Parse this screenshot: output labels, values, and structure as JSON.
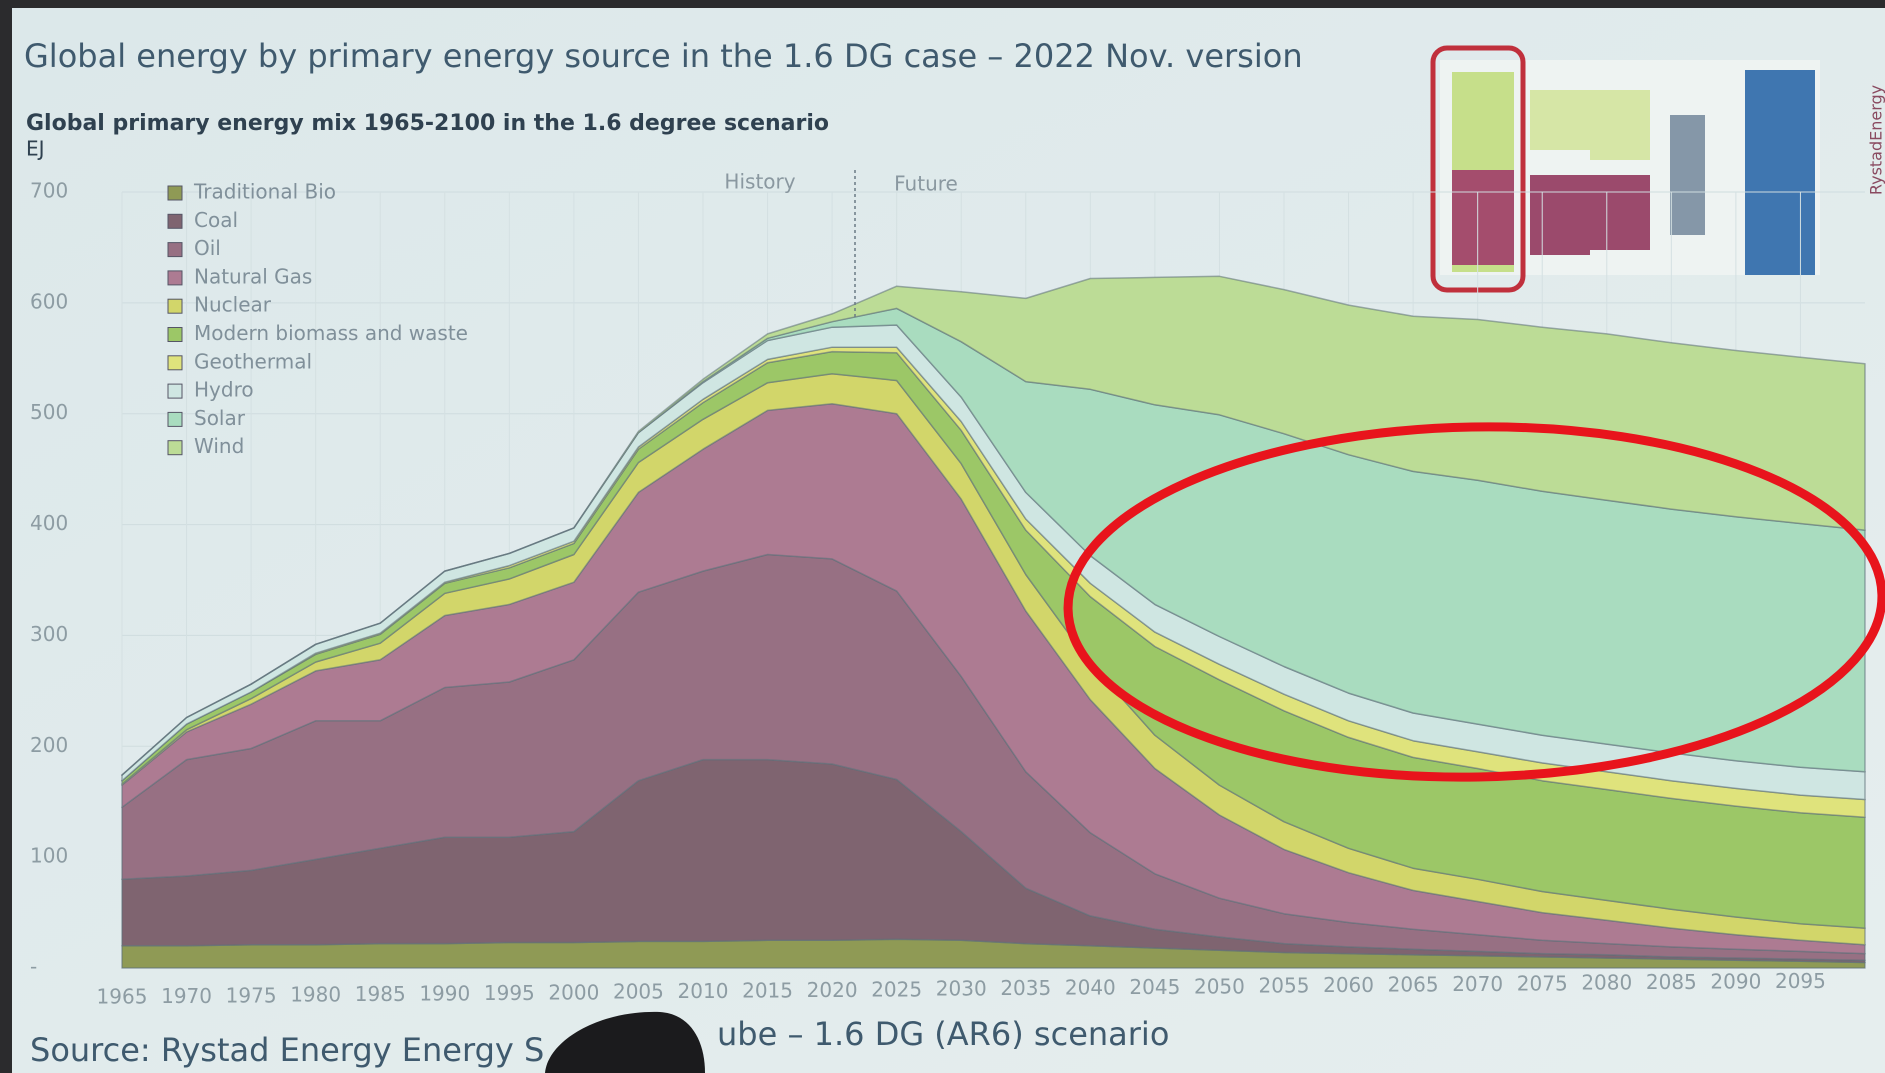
{
  "chart_data": {
    "type": "stacked-area",
    "title": "Global energy by primary energy source in the 1.6 DG case – 2022 Nov. version",
    "subtitle": "Global primary energy mix 1965-2100 in the 1.6 degree scenario",
    "y_label": "EJ",
    "annotations": [
      "History",
      "Future"
    ],
    "source": [
      "Source: Rystad Energy Energy S",
      "ube – 1.6 DG (AR6) scenario"
    ],
    "logo": "RystadEnergy",
    "x": [
      1965,
      1970,
      1975,
      1980,
      1985,
      1990,
      1995,
      2000,
      2005,
      2010,
      2015,
      2020,
      2025,
      2030,
      2035,
      2040,
      2045,
      2050,
      2055,
      2060,
      2065,
      2070,
      2075,
      2080,
      2085,
      2090,
      2095,
      2100
    ],
    "xlim": [
      1965,
      2100
    ],
    "xticks": [
      1965,
      1970,
      1975,
      1980,
      1985,
      1990,
      1995,
      2000,
      2005,
      2010,
      2015,
      2020,
      2025,
      2030,
      2035,
      2040,
      2045,
      2050,
      2055,
      2060,
      2065,
      2070,
      2075,
      2080,
      2085,
      2090,
      2095
    ],
    "ylim": [
      0,
      700
    ],
    "yticks": [
      {
        "value": 0,
        "label": "-"
      },
      100,
      200,
      300,
      400,
      500,
      600,
      700
    ],
    "grid": true,
    "legend": "top-left",
    "series": [
      {
        "name": "Traditional Bio",
        "color": "#8f9a55",
        "values": [
          20,
          20,
          21,
          21,
          22,
          22,
          23,
          23,
          24,
          24,
          25,
          25,
          26,
          25,
          22,
          20,
          18,
          16,
          14,
          13,
          12,
          11,
          10,
          9,
          8,
          7,
          6,
          5
        ]
      },
      {
        "name": "Coal",
        "color": "#7f6470",
        "values": [
          60,
          63,
          67,
          77,
          86,
          96,
          95,
          100,
          145,
          164,
          163,
          159,
          144,
          98,
          50,
          27,
          17,
          12,
          8,
          6,
          5,
          4,
          3,
          3,
          2,
          2,
          2,
          2
        ]
      },
      {
        "name": "Oil",
        "color": "#977083",
        "values": [
          65,
          105,
          110,
          125,
          115,
          135,
          140,
          155,
          170,
          170,
          185,
          185,
          170,
          140,
          105,
          75,
          50,
          35,
          27,
          22,
          18,
          15,
          12,
          10,
          9,
          8,
          7,
          6
        ]
      },
      {
        "name": "Natural Gas",
        "color": "#ad7b92",
        "values": [
          20,
          25,
          40,
          45,
          55,
          65,
          70,
          70,
          90,
          110,
          130,
          140,
          160,
          160,
          145,
          120,
          95,
          75,
          58,
          45,
          35,
          30,
          25,
          21,
          17,
          13,
          10,
          8
        ]
      },
      {
        "name": "Nuclear",
        "color": "#d2d66a",
        "values": [
          1,
          2,
          5,
          8,
          15,
          20,
          23,
          25,
          27,
          27,
          25,
          27,
          30,
          32,
          33,
          33,
          30,
          27,
          25,
          22,
          20,
          20,
          19,
          18,
          17,
          16,
          15,
          15
        ]
      },
      {
        "name": "Modern biomass and waste",
        "color": "#9cc767",
        "values": [
          3,
          5,
          6,
          7,
          8,
          9,
          10,
          10,
          12,
          15,
          18,
          20,
          25,
          30,
          40,
          60,
          80,
          95,
          100,
          100,
          100,
          100,
          100,
          100,
          100,
          100,
          100,
          100
        ]
      },
      {
        "name": "Geothermal",
        "color": "#dfe37c",
        "values": [
          0,
          0,
          0,
          1,
          1,
          1,
          2,
          2,
          2,
          3,
          3,
          4,
          5,
          8,
          10,
          12,
          13,
          14,
          15,
          15,
          15,
          15,
          16,
          16,
          16,
          16,
          16,
          16
        ]
      },
      {
        "name": "Hydro",
        "color": "#cfe6e2",
        "values": [
          5,
          6,
          7,
          8,
          9,
          10,
          11,
          12,
          13,
          15,
          17,
          18,
          20,
          22,
          24,
          25,
          25,
          25,
          25,
          25,
          25,
          25,
          25,
          25,
          25,
          25,
          25,
          25
        ]
      },
      {
        "name": "Solar",
        "color": "#a9dcbf",
        "values": [
          0,
          0,
          0,
          0,
          0,
          0,
          0,
          0,
          0,
          1,
          2,
          5,
          15,
          50,
          100,
          150,
          180,
          200,
          210,
          215,
          218,
          220,
          220,
          220,
          220,
          220,
          220,
          218
        ]
      },
      {
        "name": "Wind",
        "color": "#bcdc96",
        "values": [
          0,
          0,
          0,
          0,
          0,
          0,
          0,
          0,
          1,
          2,
          4,
          7,
          20,
          45,
          75,
          100,
          115,
          125,
          130,
          135,
          140,
          145,
          148,
          150,
          150,
          150,
          150,
          150
        ]
      }
    ]
  }
}
